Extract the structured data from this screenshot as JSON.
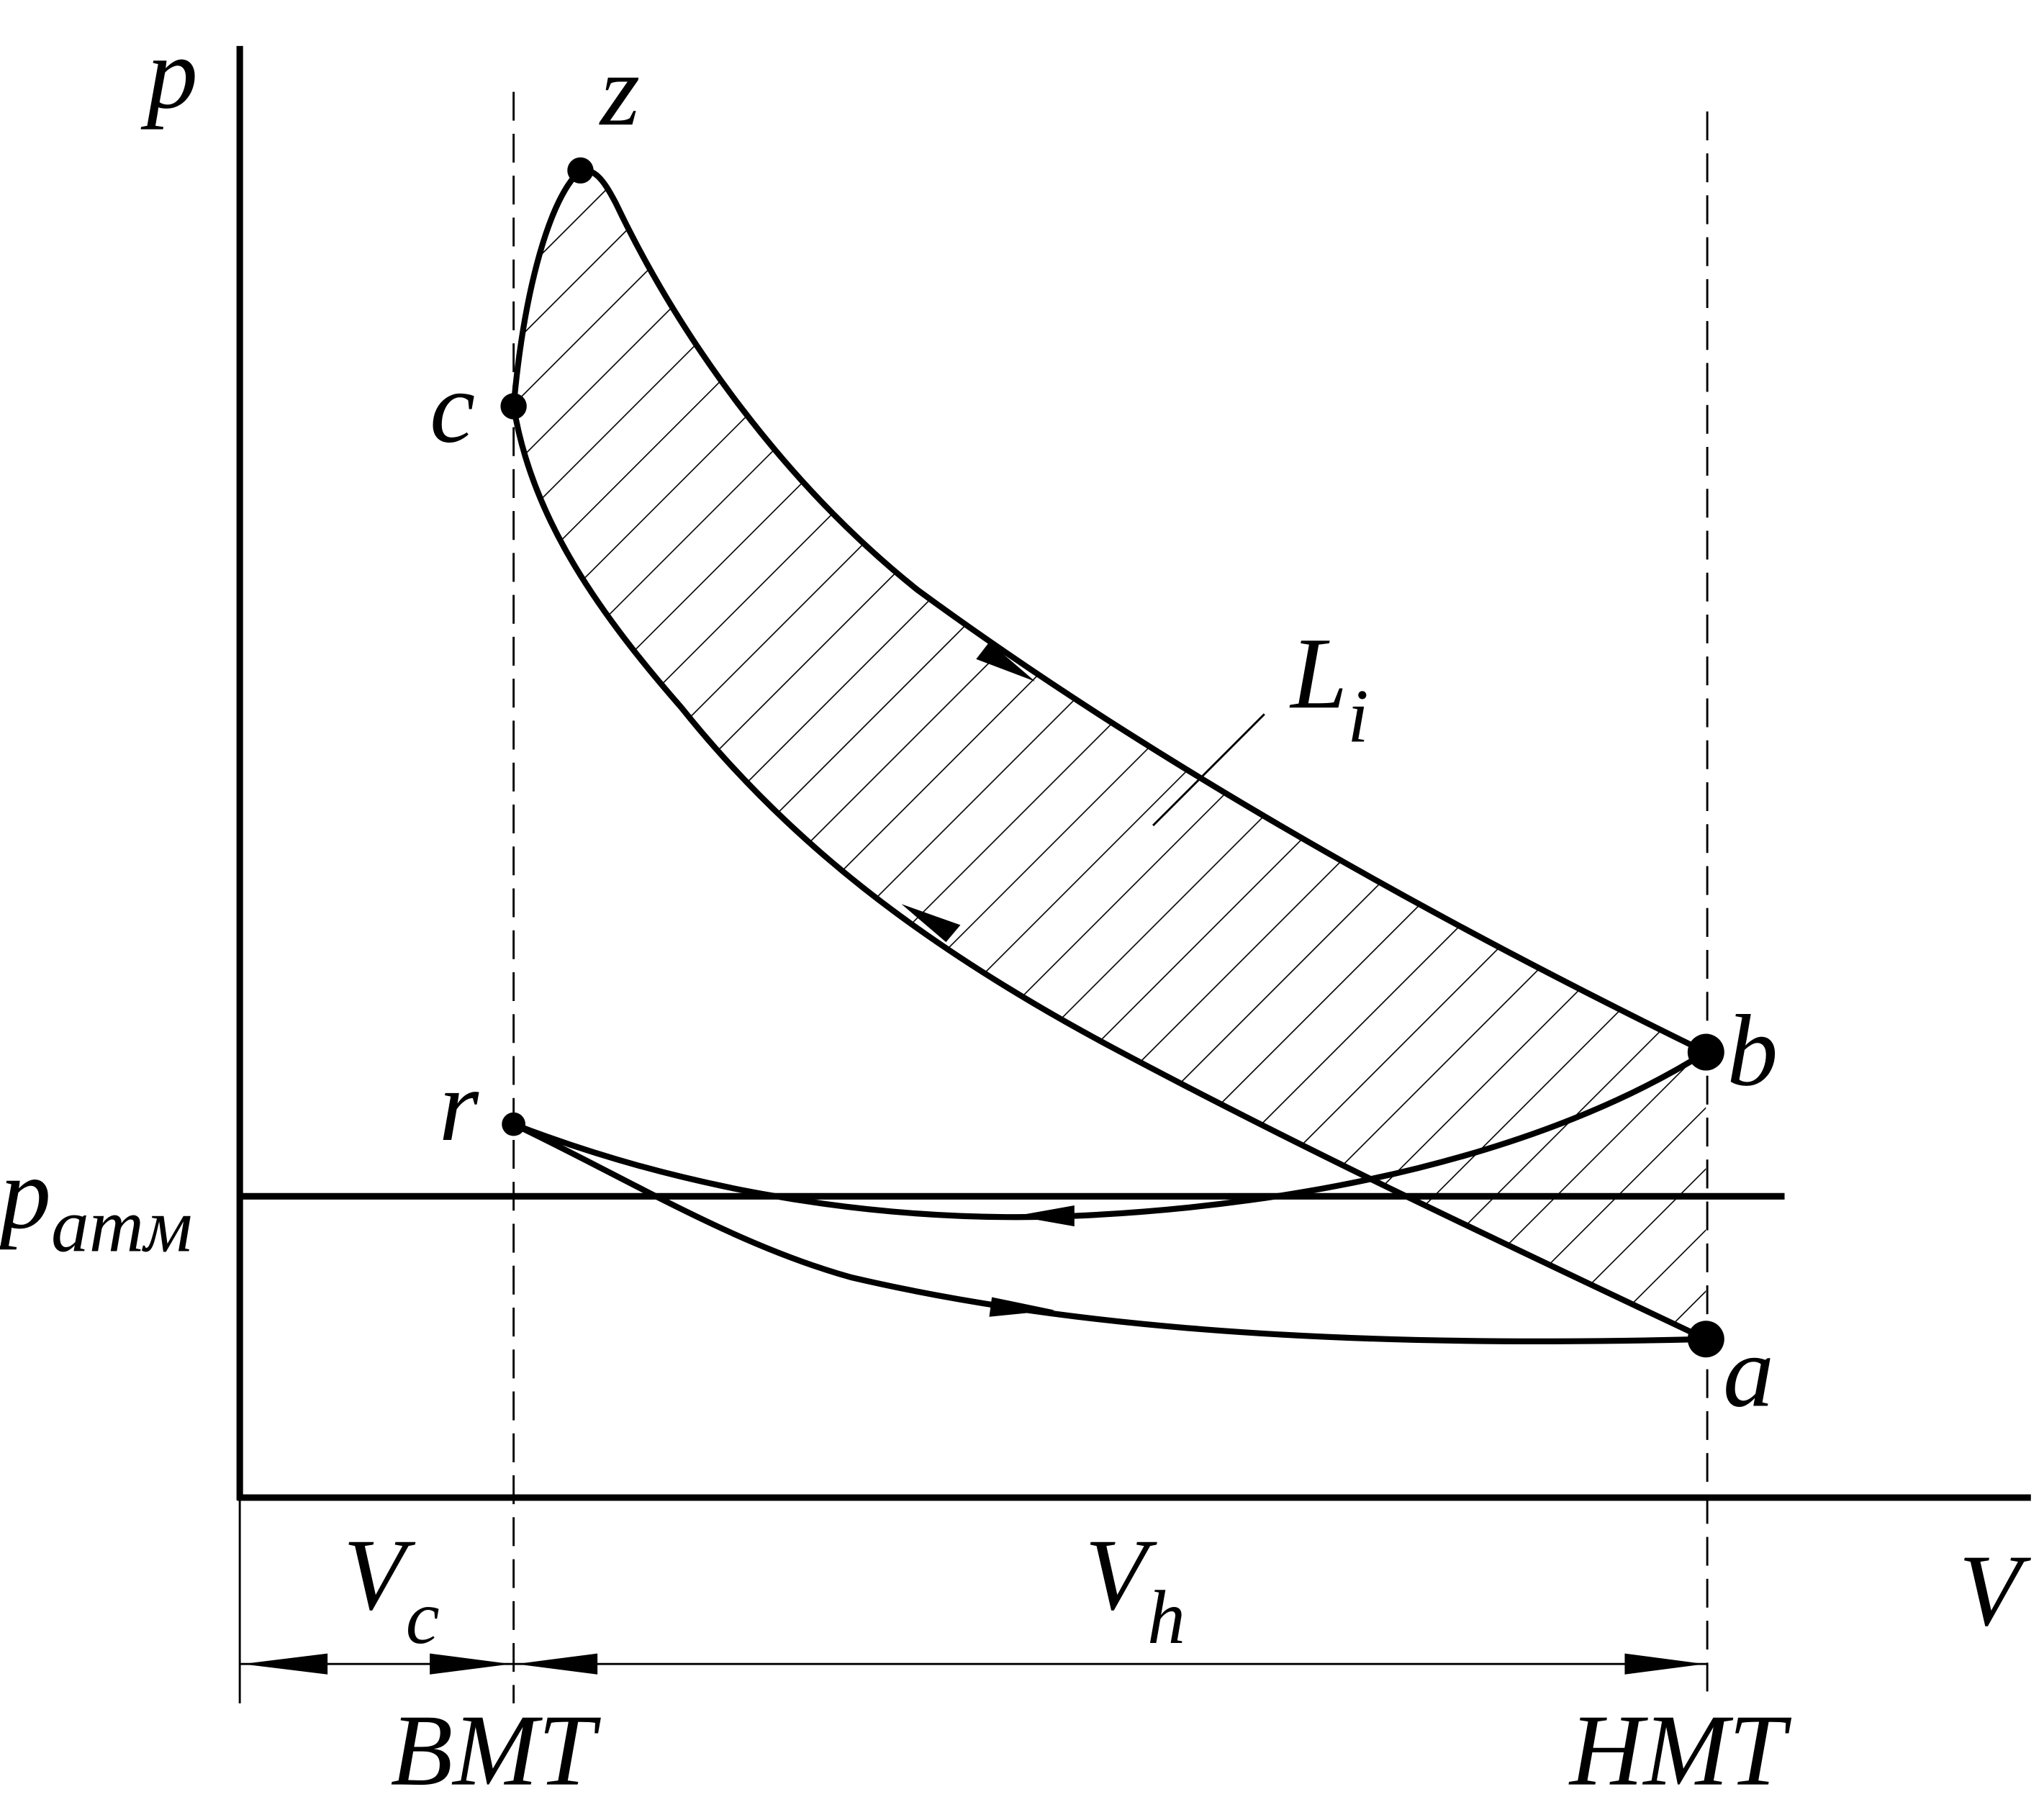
{
  "axes": {
    "y_label": "p",
    "x_label": "V"
  },
  "points": {
    "z": "z",
    "c": "c",
    "b": "b",
    "a": "a",
    "r": "r"
  },
  "labels": {
    "p_atm": {
      "base": "p",
      "sub": "атм"
    },
    "work": {
      "base": "L",
      "sub": "i"
    },
    "vc": {
      "base": "V",
      "sub": "c"
    },
    "vh": {
      "base": "V",
      "sub": "h"
    },
    "tdc": "ВМТ",
    "bdc": "НМТ"
  }
}
